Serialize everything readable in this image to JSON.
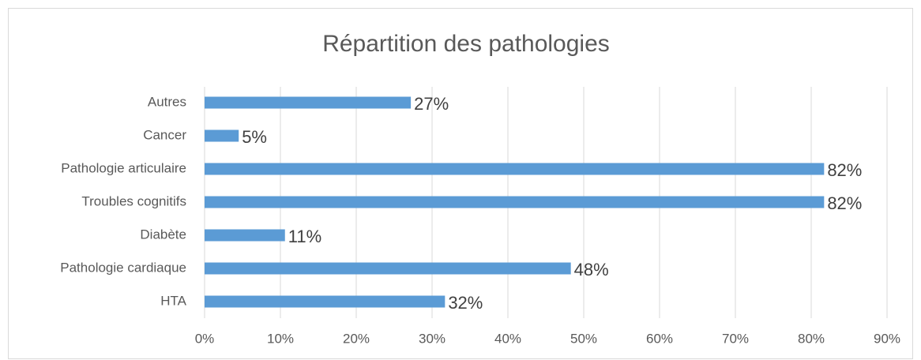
{
  "chart_data": {
    "type": "bar",
    "orientation": "horizontal",
    "title": "Répartition des pathologies",
    "categories": [
      "Autres",
      "Cancer",
      "Pathologie articulaire",
      "Troubles cognitifs",
      "Diabète",
      "Pathologie cardiaque",
      "HTA"
    ],
    "values": [
      27.2,
      4.5,
      81.7,
      81.7,
      10.6,
      48.3,
      31.7
    ],
    "value_labels": [
      "27%",
      "5%",
      "82%",
      "82%",
      "11%",
      "48%",
      "32%"
    ],
    "color": "#5b9bd5",
    "xlim": [
      0,
      90
    ],
    "xticks": [
      {
        "value": 0,
        "label": "0%"
      },
      {
        "value": 10,
        "label": "10%"
      },
      {
        "value": 20,
        "label": "20%"
      },
      {
        "value": 30,
        "label": "30%"
      },
      {
        "value": 40,
        "label": "40%"
      },
      {
        "value": 50,
        "label": "50%"
      },
      {
        "value": 60,
        "label": "60%"
      },
      {
        "value": 70,
        "label": "70%"
      },
      {
        "value": 80,
        "label": "80%"
      },
      {
        "value": 90,
        "label": "90%"
      }
    ],
    "grid": true
  }
}
